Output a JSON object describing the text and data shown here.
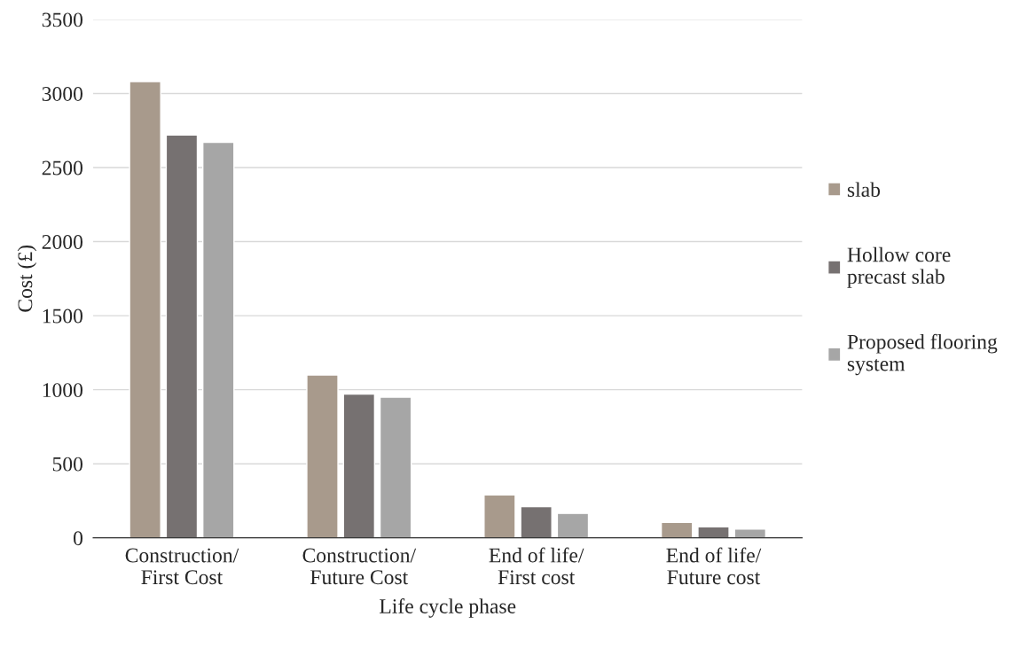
{
  "chart_data": {
    "type": "bar",
    "xlabel": "Life cycle phase",
    "ylabel": "Cost (£)",
    "categories": [
      "Construction/\nFirst Cost",
      "Construction/\nFuture Cost",
      "End of life/\nFirst cost",
      "End of life/\nFuture cost"
    ],
    "series": [
      {
        "name": "slab",
        "color": "#a89a8c",
        "values": [
          3080,
          1100,
          290,
          105
        ]
      },
      {
        "name": "Hollow core\nprecast slab",
        "color": "#767171",
        "values": [
          2720,
          970,
          210,
          75
        ]
      },
      {
        "name": "Proposed flooring\nsystem",
        "color": "#a6a6a6",
        "values": [
          2670,
          950,
          165,
          60
        ]
      }
    ],
    "ylim": [
      0,
      3500
    ],
    "yticks": [
      0,
      500,
      1000,
      1500,
      2000,
      2500,
      3000,
      3500
    ],
    "grid": "y",
    "legend": "right"
  }
}
